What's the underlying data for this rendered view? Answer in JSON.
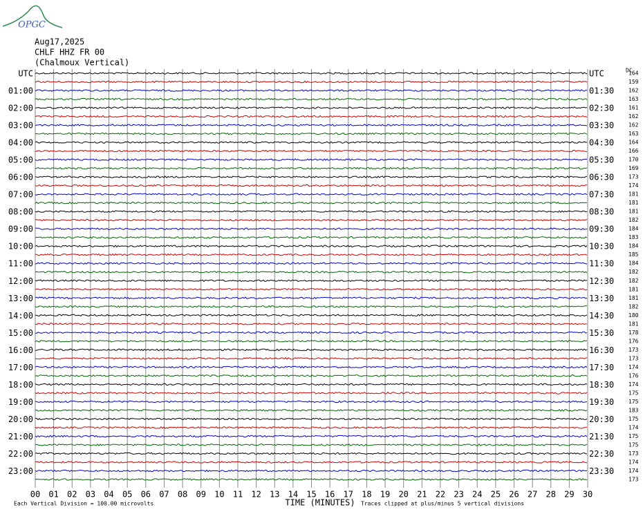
{
  "logo": "OPGC",
  "header": {
    "date": "Aug17,2025",
    "station": "CHLF HHZ FR 00",
    "name": "(Chalmoux Vertical)"
  },
  "chart_data": {
    "type": "helicorder",
    "colors": [
      "#000000",
      "#cc0000",
      "#0000cc",
      "#006600"
    ],
    "left_labels": [
      "UTC",
      null,
      "01:00",
      null,
      "02:00",
      null,
      "03:00",
      null,
      "04:00",
      null,
      "05:00",
      null,
      "06:00",
      null,
      "07:00",
      null,
      "08:00",
      null,
      "09:00",
      null,
      "10:00",
      null,
      "11:00",
      null,
      "12:00",
      null,
      "13:00",
      null,
      "14:00",
      null,
      "15:00",
      null,
      "16:00",
      null,
      "17:00",
      null,
      "18:00",
      null,
      "19:00",
      null,
      "20:00",
      null,
      "21:00",
      null,
      "22:00",
      null,
      "23:00",
      null
    ],
    "right_labels": [
      "UTC",
      null,
      "01:30",
      null,
      "02:30",
      null,
      "03:30",
      null,
      "04:30",
      null,
      "05:30",
      null,
      "06:30",
      null,
      "07:30",
      null,
      "08:30",
      null,
      "09:30",
      null,
      "10:30",
      null,
      "11:30",
      null,
      "12:30",
      null,
      "13:30",
      null,
      "14:30",
      null,
      "15:30",
      null,
      "16:30",
      null,
      "17:30",
      null,
      "18:30",
      null,
      "19:30",
      null,
      "20:30",
      null,
      "21:30",
      null,
      "22:30",
      null,
      "23:30",
      null
    ],
    "dc_label": "DC",
    "dc_values": [
      164,
      159,
      162,
      163,
      161,
      162,
      162,
      163,
      164,
      166,
      170,
      169,
      173,
      174,
      181,
      181,
      181,
      182,
      184,
      183,
      184,
      185,
      184,
      182,
      182,
      181,
      181,
      182,
      180,
      181,
      178,
      176,
      173,
      173,
      174,
      176,
      174,
      175,
      175,
      183,
      175,
      174,
      175,
      175,
      173,
      174,
      174,
      173
    ],
    "xlim": [
      0,
      30
    ],
    "xticks": [
      {
        "value": 0,
        "label": "00"
      },
      {
        "value": 1,
        "label": "01"
      },
      {
        "value": 2,
        "label": "02"
      },
      {
        "value": 3,
        "label": "03"
      },
      {
        "value": 4,
        "label": "04"
      },
      {
        "value": 5,
        "label": "05"
      },
      {
        "value": 6,
        "label": "06"
      },
      {
        "value": 7,
        "label": "07"
      },
      {
        "value": 8,
        "label": "08"
      },
      {
        "value": 9,
        "label": "09"
      },
      10,
      11,
      12,
      13,
      14,
      15,
      16,
      17,
      18,
      19,
      20,
      21,
      22,
      23,
      24,
      25,
      26,
      27,
      28,
      29,
      30
    ],
    "xlabel": "TIME (MINUTES)",
    "scale_note": "Each Vertical Division =  100.00 microvolts",
    "clip_note": "Traces clipped at plus/minus 5 vertical divisions"
  }
}
